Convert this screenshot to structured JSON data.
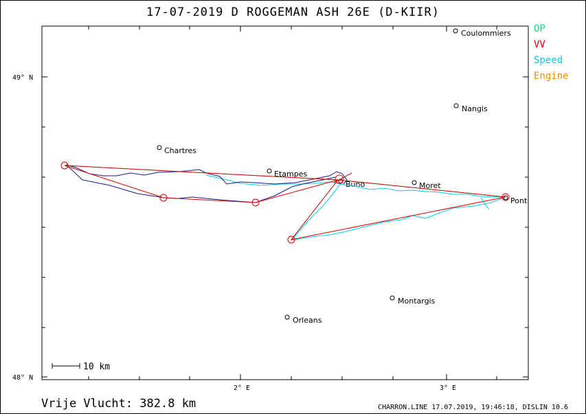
{
  "title": "17-07-2019   D ROGGEMAN   ASH 26E (D-KIIR)",
  "legend": [
    {
      "label": "OP",
      "color": "#00e08a"
    },
    {
      "label": "VV",
      "color": "#e00000"
    },
    {
      "label": "Speed",
      "color": "#00d0e8"
    },
    {
      "label": "Engine",
      "color": "#ff8c00"
    }
  ],
  "axes": {
    "y_ticks": [
      "49° N",
      "48° N"
    ],
    "x_ticks": [
      "2° E",
      "3° E"
    ]
  },
  "towns": [
    {
      "name": "Coulommiers"
    },
    {
      "name": "Nangis"
    },
    {
      "name": "Chartres"
    },
    {
      "name": "Etampes"
    },
    {
      "name": "Buno"
    },
    {
      "name": "Moret"
    },
    {
      "name": "Pont"
    },
    {
      "name": "Montargis"
    },
    {
      "name": "Orleans"
    }
  ],
  "scale": {
    "label": "10 km"
  },
  "footer": {
    "distance_label": "Vrije Vlucht:  382.8 km",
    "info": "CHARRON.LINE 17.07.2019, 19:46:18, DISLIN 10.6"
  }
}
